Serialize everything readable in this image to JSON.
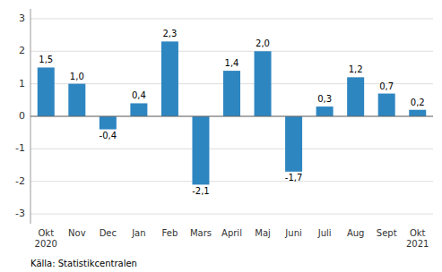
{
  "chart_data": {
    "type": "bar",
    "categories": [
      "Okt\n2020",
      "Nov",
      "Dec",
      "Jan",
      "Feb",
      "Mars",
      "April",
      "Maj",
      "Juni",
      "Juli",
      "Aug",
      "Sept",
      "Okt\n2021"
    ],
    "values": [
      1.5,
      1.0,
      -0.4,
      0.4,
      2.3,
      -2.1,
      1.4,
      2.0,
      -1.7,
      0.3,
      1.2,
      0.7,
      0.2
    ],
    "value_labels": [
      "1,5",
      "1,0",
      "-0,4",
      "0,4",
      "2,3",
      "-2,1",
      "1,4",
      "2,0",
      "-1,7",
      "0,3",
      "1,2",
      "0,7",
      "0,2"
    ],
    "data_labels": true,
    "color": "#2E86C1",
    "ylim": [
      -3.3,
      3.3
    ],
    "yticks": [
      -3,
      -2,
      -1,
      0,
      1,
      2,
      3
    ],
    "grid": true,
    "annotations": [
      "Källa: Statistikcentralen"
    ]
  }
}
